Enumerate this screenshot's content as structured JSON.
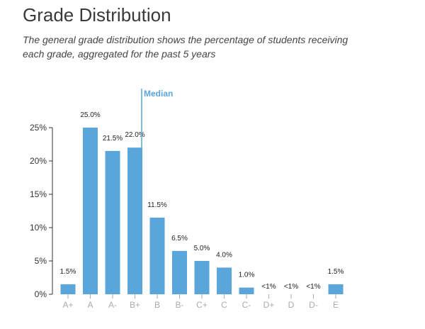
{
  "header": {
    "title": "Grade Distribution",
    "subtitle": "The general grade distribution shows the percentage of students receiving each grade, aggregated for the past 5 years"
  },
  "colors": {
    "bar": "#5aa5d9",
    "median": "#5aa5d9"
  },
  "chart_data": {
    "type": "bar",
    "categories": [
      "A+",
      "A",
      "A-",
      "B+",
      "B",
      "B-",
      "C+",
      "C",
      "C-",
      "D+",
      "D",
      "D-",
      "E"
    ],
    "values": [
      1.5,
      25.0,
      21.5,
      22.0,
      11.5,
      6.5,
      5.0,
      4.0,
      1.0,
      0,
      0,
      0,
      1.5
    ],
    "data_labels": [
      "1.5%",
      "25.0%",
      "21.5%",
      "22.0%",
      "11.5%",
      "6.5%",
      "5.0%",
      "4.0%",
      "1.0%",
      "<1%",
      "<1%",
      "<1%",
      "1.5%"
    ],
    "yticks": [
      0,
      5,
      10,
      15,
      20,
      25
    ],
    "ytick_labels": [
      "0%",
      "5%",
      "10%",
      "15%",
      "20%",
      "25%"
    ],
    "ylim": [
      0,
      25
    ],
    "median": {
      "label": "Median",
      "category": "B+"
    },
    "grid": false,
    "xlabel": "",
    "ylabel": ""
  }
}
